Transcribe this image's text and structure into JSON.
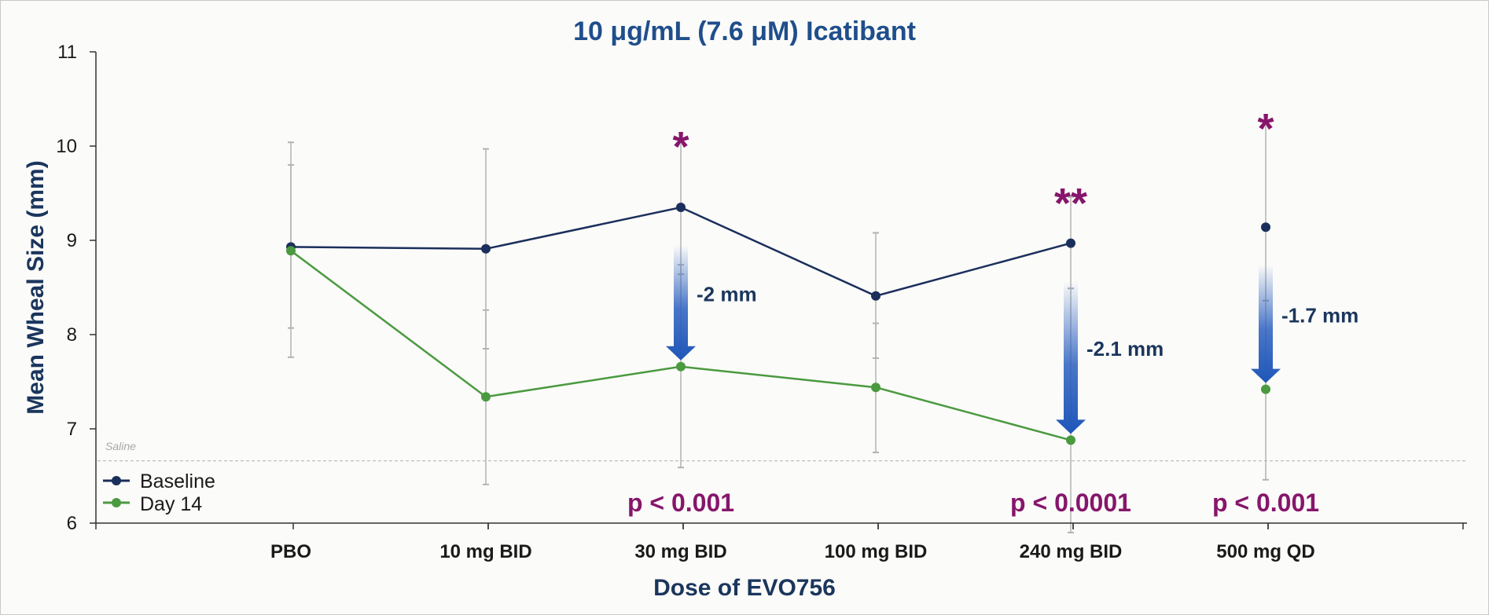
{
  "chart_data": {
    "type": "line",
    "title": "10 μg/mL (7.6 μM) Icatibant",
    "xlabel": "Dose of EVO756",
    "ylabel": "Mean Wheal Size (mm)",
    "ylim": [
      6,
      11
    ],
    "yticks": [
      "6",
      "7",
      "8",
      "9",
      "10",
      "11"
    ],
    "categories": [
      "PBO",
      "10 mg BID",
      "30 mg BID",
      "100 mg BID",
      "240 mg BID",
      "500 mg QD"
    ],
    "series": [
      {
        "name": "Baseline",
        "color": "#1b2f5c",
        "values": [
          8.93,
          8.91,
          9.35,
          8.41,
          8.97,
          9.14
        ],
        "err_low": [
          7.76,
          7.85,
          8.64,
          7.75,
          8.49,
          8.36
        ],
        "err_high": [
          10.04,
          9.97,
          10.06,
          9.08,
          9.46,
          10.25
        ],
        "connected_count": 5
      },
      {
        "name": "Day 14",
        "color": "#4a9a3f",
        "values": [
          8.89,
          7.34,
          7.66,
          7.44,
          6.88,
          7.42
        ],
        "err_low": [
          8.07,
          6.41,
          6.59,
          6.75,
          5.9,
          6.46
        ],
        "err_high": [
          9.8,
          8.26,
          8.74,
          8.12,
          8.49,
          8.36
        ],
        "connected_count": 5
      }
    ],
    "reference_line": {
      "label": "Saline",
      "value": 6.66
    },
    "annotations": [
      {
        "category_index": 2,
        "star": "*",
        "p_value": "p < 0.001",
        "delta": "-2 mm",
        "from": 9.35,
        "to": 7.66
      },
      {
        "category_index": 4,
        "star": "**",
        "p_value": "p < 0.0001",
        "delta": "-2.1 mm",
        "from": 8.97,
        "to": 6.88
      },
      {
        "category_index": 5,
        "star": "*",
        "p_value": "p < 0.001",
        "delta": "-1.7 mm",
        "from": 9.14,
        "to": 7.42
      }
    ],
    "legend": {
      "placement": "bottom-left",
      "entries": [
        "Baseline",
        "Day 14"
      ]
    }
  }
}
